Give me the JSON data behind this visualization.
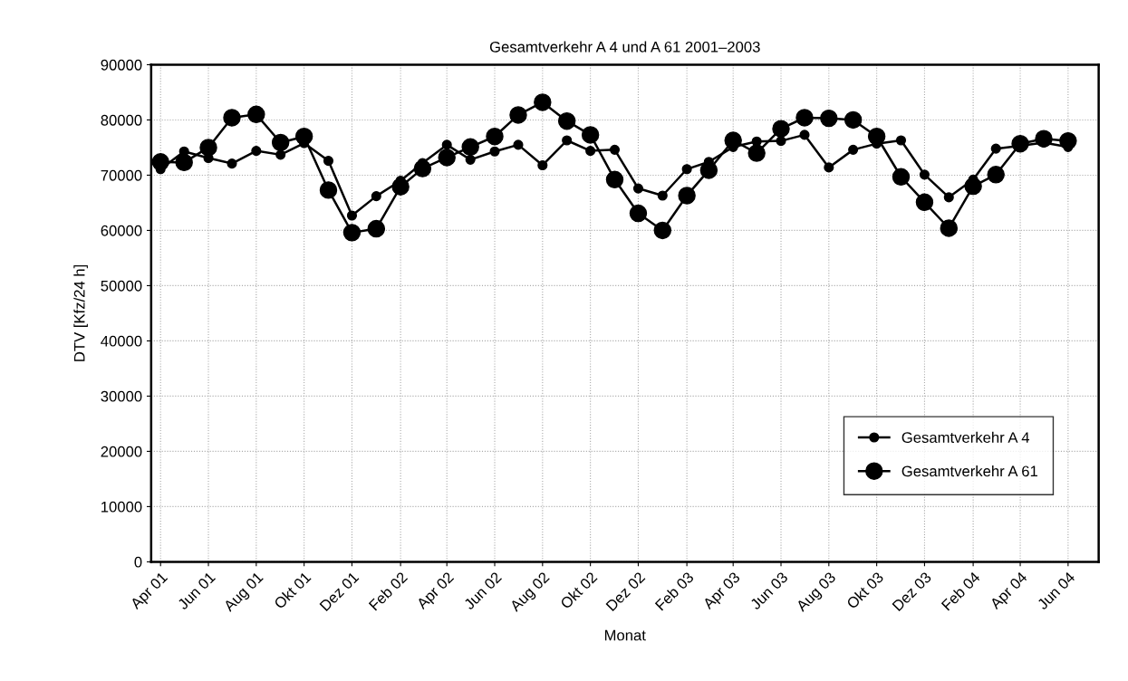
{
  "chart_data": {
    "type": "line",
    "title": "Gesamtverkehr A 4 und A 61 2001–2003",
    "xlabel": "Monat",
    "ylabel": "DTV [Kfz/24 h]",
    "x": [
      "2001-04",
      "2001-05",
      "2001-06",
      "2001-07",
      "2001-08",
      "2001-09",
      "2001-10",
      "2001-11",
      "2001-12",
      "2002-01",
      "2002-02",
      "2002-03",
      "2002-04",
      "2002-05",
      "2002-06",
      "2002-07",
      "2002-08",
      "2002-09",
      "2002-10",
      "2002-11",
      "2002-12",
      "2003-01",
      "2003-02",
      "2003-03",
      "2003-04",
      "2003-05",
      "2003-06",
      "2003-07",
      "2003-08",
      "2003-09",
      "2003-10",
      "2003-11",
      "2003-12",
      "2004-01",
      "2004-02",
      "2004-03",
      "2004-04",
      "2004-05",
      "2004-06"
    ],
    "series": [
      {
        "name": "Gesamtverkehr A 4",
        "color": "#000000",
        "values": [
          71100,
          74300,
          73100,
          72100,
          74400,
          73700,
          75800,
          72600,
          62700,
          66200,
          69000,
          72200,
          75500,
          72800,
          74300,
          75500,
          71800,
          76300,
          74400,
          74600,
          67600,
          66300,
          71100,
          72400,
          75100,
          76100,
          76200,
          77300,
          71400,
          74600,
          75700,
          76300,
          70100,
          66000,
          69200,
          74800,
          75300,
          75900,
          75100
        ]
      },
      {
        "name": "Gesamtverkehr A 61",
        "color": "#000000",
        "values": [
          72400,
          72300,
          75000,
          80400,
          81000,
          75900,
          77000,
          67300,
          59600,
          60300,
          67900,
          71200,
          73200,
          75100,
          77000,
          80900,
          83200,
          79800,
          77300,
          69200,
          63100,
          60000,
          66300,
          70900,
          76300,
          74000,
          78400,
          80400,
          80300,
          80000,
          77000,
          69700,
          65100,
          60400,
          68000,
          70100,
          75700,
          76600,
          76200
        ]
      }
    ],
    "xlim": [
      "2001-03-20",
      "2004-07-10"
    ],
    "xticks": [
      {
        "value": "2001-04",
        "label": "Apr 01"
      },
      {
        "value": "2001-06",
        "label": "Jun 01"
      },
      {
        "value": "2001-08",
        "label": "Aug 01"
      },
      {
        "value": "2001-10",
        "label": "Okt 01"
      },
      {
        "value": "2001-12",
        "label": "Dez 01"
      },
      {
        "value": "2002-02",
        "label": "Feb 02"
      },
      {
        "value": "2002-04",
        "label": "Apr 02"
      },
      {
        "value": "2002-06",
        "label": "Jun 02"
      },
      {
        "value": "2002-08",
        "label": "Aug 02"
      },
      {
        "value": "2002-10",
        "label": "Okt 02"
      },
      {
        "value": "2002-12",
        "label": "Dez 02"
      },
      {
        "value": "2003-02",
        "label": "Feb 03"
      },
      {
        "value": "2003-04",
        "label": "Apr 03"
      },
      {
        "value": "2003-06",
        "label": "Jun 03"
      },
      {
        "value": "2003-08",
        "label": "Aug 03"
      },
      {
        "value": "2003-10",
        "label": "Okt 03"
      },
      {
        "value": "2003-12",
        "label": "Dez 03"
      },
      {
        "value": "2004-02",
        "label": "Feb 04"
      },
      {
        "value": "2004-04",
        "label": "Apr 04"
      },
      {
        "value": "2004-06",
        "label": "Jun 04"
      }
    ],
    "ylim": [
      0,
      90000
    ],
    "yticks": [
      0,
      10000,
      20000,
      30000,
      40000,
      50000,
      60000,
      70000,
      80000,
      90000
    ],
    "grid": true,
    "legend": "bottom right",
    "marker": "circle",
    "line_style": "solid"
  }
}
